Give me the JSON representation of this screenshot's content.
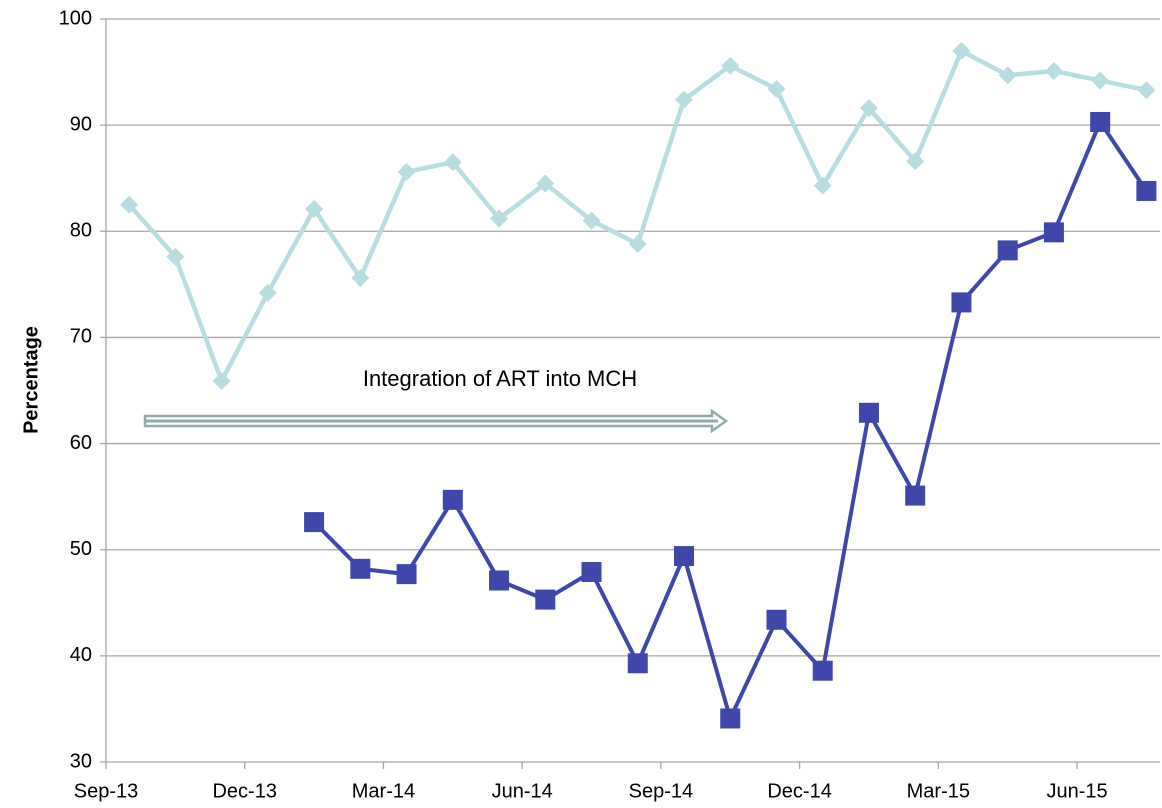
{
  "chart_data": {
    "type": "line",
    "y_label": "Percentage",
    "annotation": "Integration of ART into MCH",
    "categories": [
      "Sep-13",
      null,
      null,
      "Dec-13",
      null,
      null,
      "Mar-14",
      null,
      null,
      "Jun-14",
      null,
      null,
      "Sep-14",
      null,
      null,
      "Dec-14",
      null,
      null,
      "Mar-15",
      null,
      null,
      "Jun-15",
      null
    ],
    "series": [
      {
        "color": "#b7dde0",
        "marker": "diamond",
        "values": [
          82.5,
          77.6,
          65.9,
          74.2,
          82.1,
          75.6,
          85.6,
          86.5,
          81.2,
          84.5,
          81.0,
          78.8,
          92.4,
          95.6,
          93.4,
          84.3,
          91.6,
          86.6,
          97.0,
          94.7,
          95.1,
          94.2,
          93.3
        ]
      },
      {
        "color": "#3f48aa",
        "marker": "square",
        "values": [
          null,
          null,
          null,
          null,
          52.6,
          48.2,
          47.7,
          54.7,
          47.1,
          45.3,
          47.9,
          39.3,
          49.4,
          34.1,
          43.4,
          38.6,
          62.9,
          55.1,
          73.3,
          78.2,
          79.9,
          90.3,
          83.8
        ]
      }
    ],
    "ylim": [
      30,
      100
    ],
    "yticks": [
      30,
      40,
      50,
      60,
      70,
      80,
      90,
      100
    ],
    "grid": true
  }
}
